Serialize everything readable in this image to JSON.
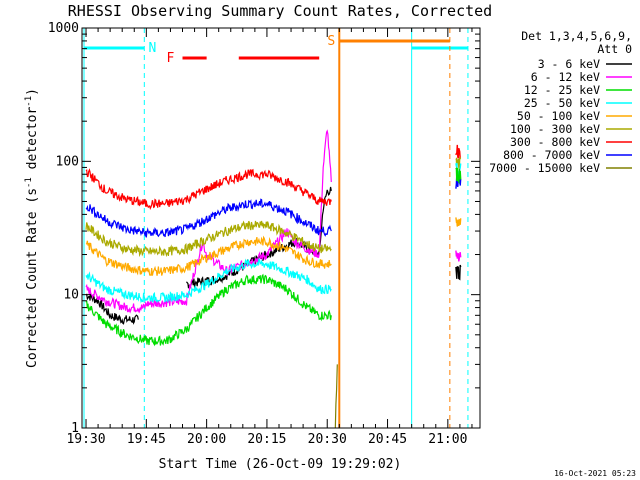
{
  "chart_data": {
    "type": "line",
    "title": "RHESSI Observing Summary Count Rates, Corrected",
    "xlabel": "Start Time (26-Oct-09 19:29:02)",
    "ylabel": "Corrected Count Rate (s⁻¹ detector⁻¹)",
    "ylabel_main": "Corrected Count Rate (s",
    "ylabel_exp1": "-1",
    "ylabel_mid": " detector",
    "ylabel_exp2": "-1",
    "ylabel_end": ")",
    "y_scale": "log",
    "ylim": [
      1,
      1000
    ],
    "y_ticks": [
      "1",
      "10",
      "100",
      "1000"
    ],
    "x_ticks": [
      "19:30",
      "19:45",
      "20:00",
      "20:15",
      "20:30",
      "20:45",
      "21:00"
    ],
    "x_tick_minutes": [
      30,
      45,
      60,
      75,
      90,
      105,
      120
    ],
    "xlim_minutes": [
      29,
      128
    ],
    "legend_header_line1": "Det 1,3,4,5,6,9,",
    "legend_header_line2": "Att 0",
    "legend_position": "right",
    "series": [
      {
        "name": "3 - 6 keV",
        "color": "#000000",
        "x": [
          30,
          33,
          36,
          39,
          43,
          44.5,
          55,
          62,
          65,
          75,
          82,
          88,
          89,
          90,
          91
        ],
        "y": [
          10,
          9,
          7,
          6.5,
          6.5,
          null,
          12,
          13,
          14,
          20,
          25,
          20,
          45,
          60,
          60
        ]
      },
      {
        "name": "6 - 12 keV",
        "color": "#ff00ff",
        "x": [
          30,
          35,
          40,
          44.5,
          45,
          55,
          59,
          60,
          65,
          75,
          80,
          82,
          85,
          88,
          89,
          90,
          91
        ],
        "y": [
          11,
          9,
          8,
          8,
          8.5,
          9,
          25,
          20,
          15,
          20,
          30,
          25,
          22,
          20,
          90,
          180,
          70
        ]
      },
      {
        "name": "12 - 25 keV",
        "color": "#00dd00",
        "x": [
          30,
          35,
          40,
          45,
          50,
          55,
          60,
          65,
          70,
          75,
          80,
          85,
          88,
          91
        ],
        "y": [
          8.5,
          6,
          5,
          4.5,
          4.5,
          5.5,
          8,
          11,
          13,
          13,
          11,
          8,
          7,
          7
        ]
      },
      {
        "name": "25 - 50 keV",
        "color": "#00ffff",
        "x": [
          30,
          35,
          40,
          45,
          50,
          55,
          60,
          65,
          70,
          75,
          80,
          85,
          88,
          91
        ],
        "y": [
          14,
          11,
          10,
          9.5,
          9.5,
          10,
          12,
          15,
          17,
          17,
          15,
          13,
          11,
          11
        ]
      },
      {
        "name": "50 - 100 keV",
        "color": "#ffaa00",
        "x": [
          30,
          35,
          40,
          45,
          50,
          55,
          60,
          65,
          70,
          75,
          80,
          85,
          88,
          91
        ],
        "y": [
          24,
          18,
          16,
          15,
          15,
          16,
          19,
          22,
          25,
          25,
          22,
          18,
          17,
          17
        ]
      },
      {
        "name": "100 - 300 keV",
        "color": "#aaaa00",
        "x": [
          30,
          35,
          40,
          45,
          50,
          55,
          60,
          65,
          70,
          75,
          80,
          85,
          88,
          91
        ],
        "y": [
          33,
          25,
          22,
          21,
          21,
          22,
          26,
          30,
          33,
          33,
          29,
          24,
          22,
          22
        ]
      },
      {
        "name": "300 - 800 keV",
        "color": "#ff0000",
        "x": [
          30,
          35,
          40,
          45,
          50,
          55,
          60,
          65,
          70,
          75,
          80,
          85,
          88,
          91
        ],
        "y": [
          85,
          60,
          52,
          48,
          48,
          52,
          62,
          72,
          80,
          80,
          70,
          57,
          50,
          50
        ]
      },
      {
        "name": "800 - 7000 keV",
        "color": "#0000ff",
        "x": [
          30,
          35,
          40,
          45,
          50,
          55,
          60,
          65,
          70,
          75,
          80,
          85,
          88,
          91
        ],
        "y": [
          47,
          36,
          31,
          29,
          29,
          31,
          37,
          44,
          48,
          48,
          42,
          34,
          30,
          30
        ]
      },
      {
        "name": "7000 - 15000 keV",
        "color": "#808000",
        "x": [
          92,
          92.5
        ],
        "y": [
          1,
          3
        ]
      }
    ],
    "flags": [
      {
        "label": "N",
        "color": "#00ffff"
      },
      {
        "label": "F",
        "color": "#ff0000"
      },
      {
        "label": "S",
        "color": "#ff8000"
      }
    ],
    "timestamp": "16-Oct-2021 05:23"
  }
}
